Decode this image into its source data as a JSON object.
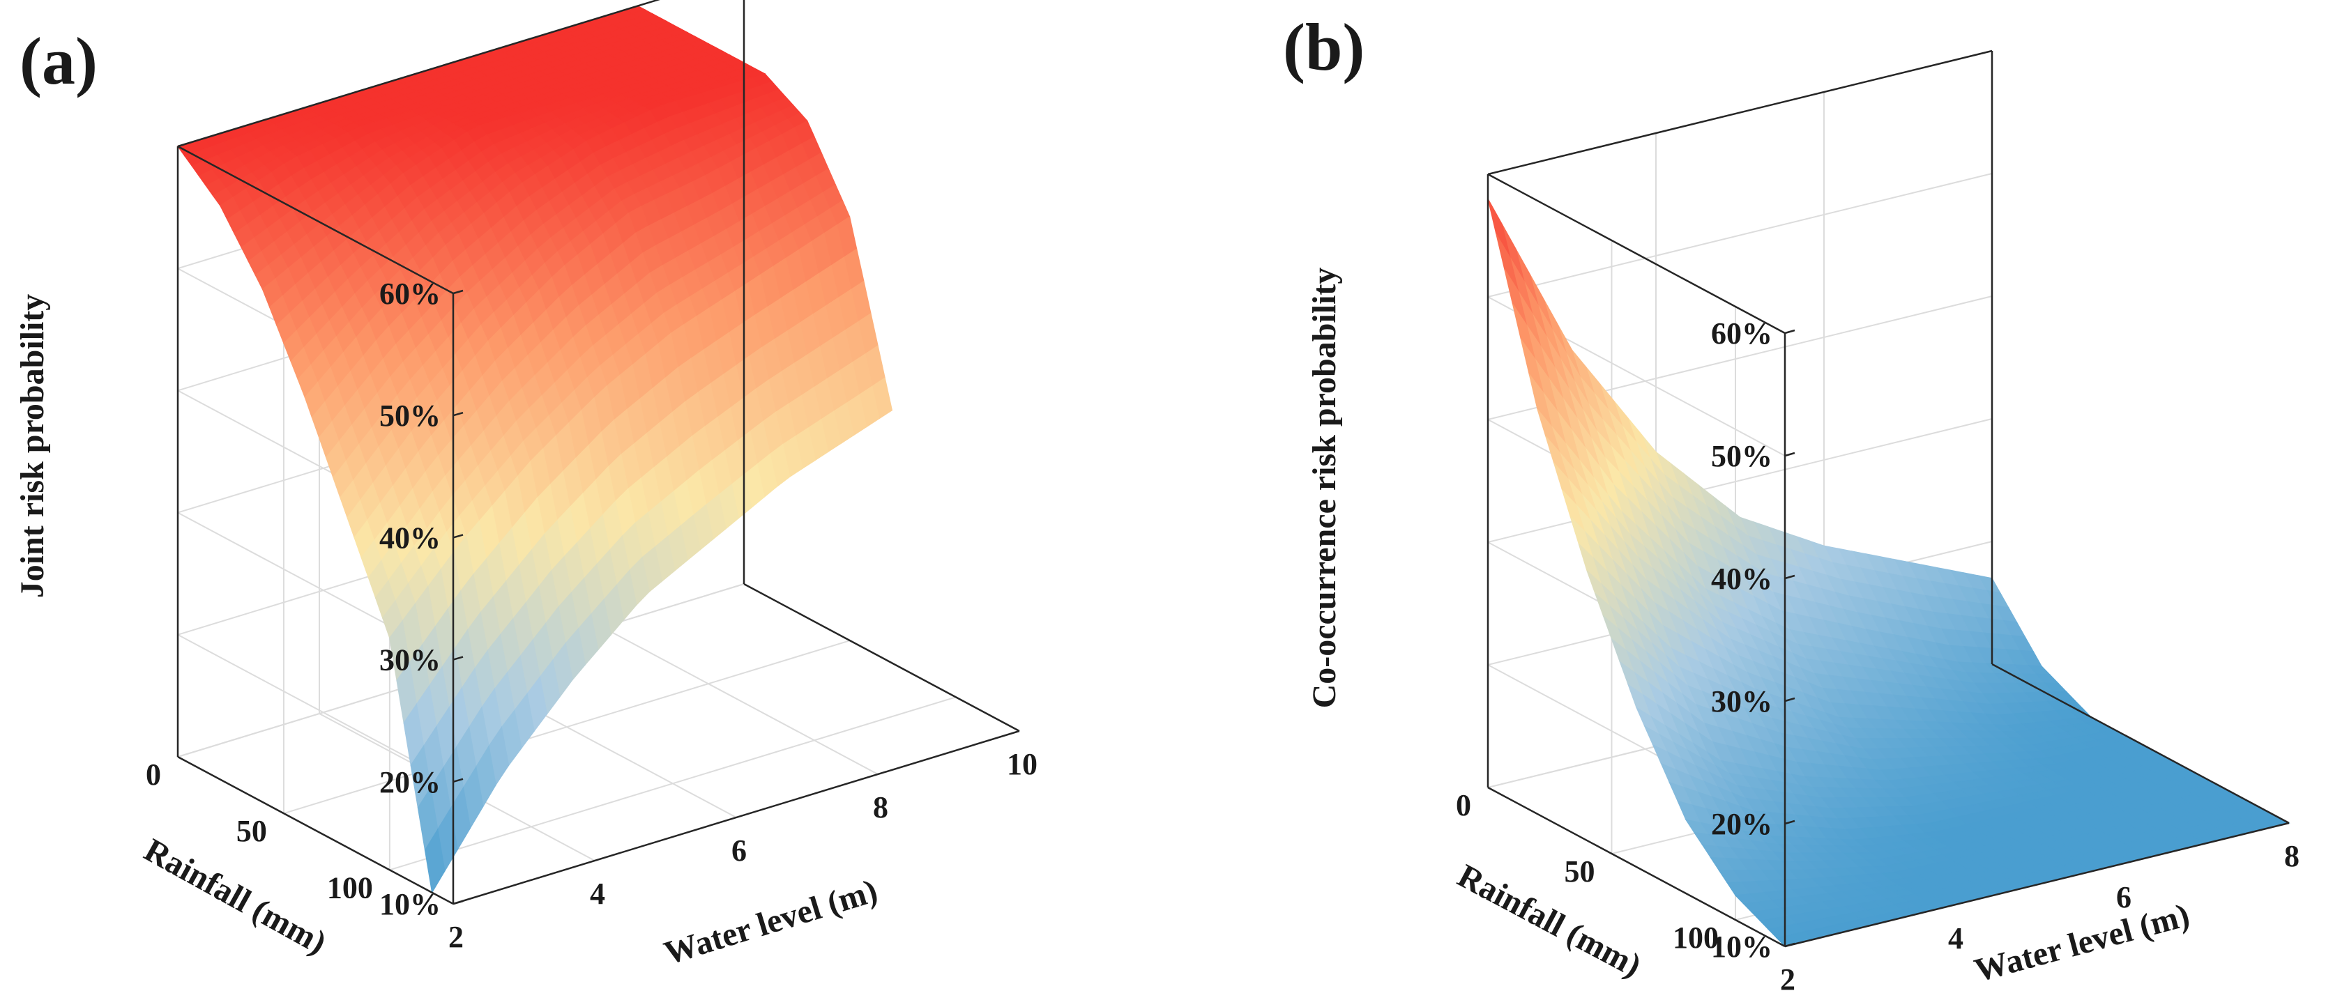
{
  "colors": {
    "low": "#4a9ed0",
    "mid_low": "#a9cbe3",
    "mid": "#fbe7a8",
    "mid_high": "#fd9a6a",
    "high": "#f5322d"
  },
  "chart_data": [
    {
      "type": "surface",
      "panel_label": "(a)",
      "zlabel": "Joint risk probability",
      "xlabel": "Water level (m)",
      "ylabel": "Rainfall (mm)",
      "x_ticks": [
        "2",
        "4",
        "6",
        "8",
        "10"
      ],
      "y_ticks": [
        "0",
        "50",
        "100"
      ],
      "z_ticks": [
        "10%",
        "20%",
        "30%",
        "40%",
        "50%",
        "60%"
      ],
      "xlim": [
        2,
        10
      ],
      "ylim": [
        0,
        130
      ],
      "zlim": [
        10,
        60
      ],
      "x": [
        2,
        3,
        4,
        5,
        6,
        7,
        8.5
      ],
      "y": [
        0,
        20,
        40,
        60,
        80,
        100,
        120
      ],
      "z": [
        [
          60,
          60,
          60,
          60,
          60,
          60,
          60
        ],
        [
          57,
          59,
          60,
          60,
          60,
          60,
          60
        ],
        [
          52,
          55,
          58,
          60,
          60,
          60,
          60
        ],
        [
          45,
          50,
          54,
          57,
          59,
          60,
          60
        ],
        [
          37,
          43,
          48,
          52,
          55,
          56,
          58
        ],
        [
          29,
          35,
          40,
          44,
          47,
          49,
          52
        ],
        [
          10,
          18,
          24,
          29,
          32,
          35,
          38
        ]
      ]
    },
    {
      "type": "surface",
      "panel_label": "(b)",
      "zlabel": "Co-occurrence risk probability",
      "xlabel": "Water level (m)",
      "ylabel": "Rainfall (mm)",
      "x_ticks": [
        "2",
        "4",
        "6",
        "8"
      ],
      "y_ticks": [
        "0",
        "50",
        "100"
      ],
      "z_ticks": [
        "10%",
        "20%",
        "30%",
        "40%",
        "50%",
        "60%"
      ],
      "xlim": [
        2,
        8
      ],
      "ylim": [
        0,
        120
      ],
      "zlim": [
        10,
        60
      ],
      "x": [
        2,
        3,
        4,
        5,
        6,
        7,
        8
      ],
      "y": [
        0,
        20,
        40,
        60,
        80,
        100,
        120
      ],
      "z": [
        [
          58,
          44,
          34,
          27,
          23,
          20,
          17
        ],
        [
          43,
          33,
          25,
          20,
          17,
          14,
          12
        ],
        [
          32,
          24,
          19,
          15,
          13,
          11,
          10
        ],
        [
          23,
          17,
          14,
          12,
          11,
          10,
          10
        ],
        [
          16,
          13,
          11,
          10,
          10,
          10,
          10
        ],
        [
          12,
          11,
          10,
          10,
          10,
          10,
          10
        ],
        [
          10,
          10,
          10,
          10,
          10,
          10,
          10
        ]
      ]
    }
  ]
}
